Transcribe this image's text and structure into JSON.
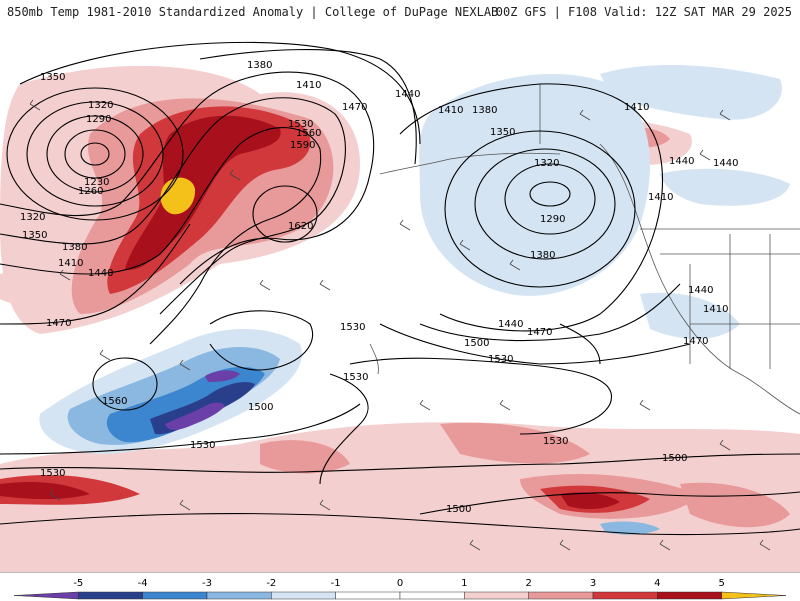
{
  "header": {
    "left_title": "850mb Temp 1981-2010 Standardized Anomaly | College of DuPage NEXLAB",
    "right_title": "00Z GFS | F108 Valid: 12Z SAT MAR 29 2025"
  },
  "map": {
    "height_contours_dam": [
      "1350",
      "1320",
      "1290",
      "1230",
      "1260",
      "1320",
      "1350",
      "1380",
      "1410",
      "1440",
      "1470",
      "1380",
      "1410",
      "1440",
      "1470",
      "1530",
      "1560",
      "1590",
      "1620",
      "1410",
      "1380",
      "1350",
      "1320",
      "1290",
      "1380",
      "1410",
      "1440",
      "1440",
      "1410",
      "1440",
      "1410",
      "1470",
      "1440",
      "1470",
      "1500",
      "1530",
      "1530",
      "1530",
      "1560",
      "1500",
      "1530",
      "1530",
      "1530",
      "1500",
      "1500"
    ],
    "colors": {
      "anomaly_warm_light": "#f4cfcf",
      "anomaly_warm_mid": "#e89a9a",
      "anomaly_warm_strong": "#d0383b",
      "anomaly_warm_deep": "#a8101c",
      "anomaly_warm_extreme": "#f4c01a",
      "anomaly_cold_light": "#d4e4f3",
      "anomaly_cold_mid": "#8ab8e0",
      "anomaly_cold_strong": "#3c86cf",
      "anomaly_cold_deep": "#2a3f8c",
      "anomaly_cold_extreme": "#6b3fa8"
    }
  },
  "colorbar": {
    "ticks": [
      "-5",
      "-4",
      "-3",
      "-2",
      "-1",
      "0",
      "1",
      "2",
      "3",
      "4",
      "5"
    ],
    "colors": [
      "#6b3fa8",
      "#2a3f8c",
      "#3c86cf",
      "#8ab8e0",
      "#d4e4f3",
      "#ffffff",
      "#ffffff",
      "#f4cfcf",
      "#e89a9a",
      "#d0383b",
      "#a8101c",
      "#f4c01a"
    ]
  }
}
